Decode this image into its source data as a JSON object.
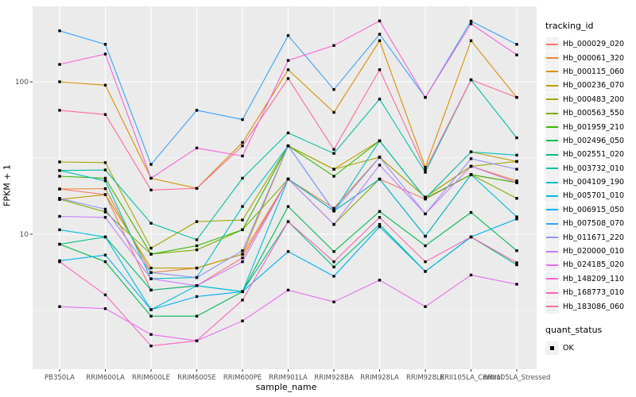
{
  "figure": {
    "bg": "#FFFFFF",
    "panel_bg": "#EBEBEB",
    "grid_color": "#FFFFFF",
    "tick_color": "#333333",
    "tick_label_color": "#4D4D4D",
    "point_color": "#000000"
  },
  "chart_data": {
    "type": "line",
    "title": "",
    "xlabel": "sample_name",
    "ylabel": "FPKM + 1",
    "y_scale": "log10",
    "ylim": [
      1.4,
      300
    ],
    "y_ticks": [
      10,
      100
    ],
    "y_tick_labels": [
      "10",
      "100"
    ],
    "y_minor_ticks": [
      3.162,
      31.62
    ],
    "grid": true,
    "marker": "black-square",
    "legend_position": "right",
    "legend_title": "tracking_id",
    "legend2_title": "quant_status",
    "legend2_items": [
      "OK"
    ],
    "categories": [
      "PB350LA",
      "RRIM600LA",
      "RRIM600LE",
      "RRIM600SE",
      "RRIM600PE",
      "RRIM901LA",
      "RRIM928BA",
      "RRIM928LA",
      "RRIM928LE",
      "RRII105LA_Control",
      "RRII105LA_Stressed"
    ],
    "series": [
      {
        "name": "Hb_000029_020",
        "color": "#F8766D",
        "values": [
          19.8,
          18.2,
          4.3,
          4.6,
          7.0,
          23,
          14.2,
          23,
          17,
          24.6,
          21.8
        ]
      },
      {
        "name": "Hb_000061_320",
        "color": "#EA8331",
        "values": [
          19.8,
          19.9,
          5.6,
          6.0,
          7.4,
          23,
          14.8,
          32,
          17.5,
          27.9,
          22.4
        ]
      },
      {
        "name": "Hb_000115_060",
        "color": "#D89000",
        "values": [
          100,
          95,
          23.3,
          20,
          40,
          120,
          63,
          186,
          27.5,
          186,
          79
        ]
      },
      {
        "name": "Hb_000236_070",
        "color": "#C09B00",
        "values": [
          16.9,
          18.2,
          6.0,
          6.0,
          7.4,
          38,
          26.7,
          41,
          17.2,
          34.7,
          30
        ]
      },
      {
        "name": "Hb_000483_200",
        "color": "#A3A500",
        "values": [
          29.8,
          29.5,
          8.1,
          12.1,
          12.4,
          38,
          26.7,
          32,
          17.5,
          27.9,
          30
        ]
      },
      {
        "name": "Hb_000563_550",
        "color": "#7CAE00",
        "values": [
          17.0,
          14.0,
          7.4,
          7.9,
          10.7,
          23,
          11.6,
          23,
          9.7,
          24.6,
          17.2
        ]
      },
      {
        "name": "Hb_001959_210",
        "color": "#39B600",
        "values": [
          24,
          23.3,
          7.4,
          8.4,
          10.7,
          38,
          24,
          41,
          17.2,
          24.6,
          21.8
        ]
      },
      {
        "name": "Hb_002496_050",
        "color": "#00BB4E",
        "values": [
          8.6,
          6.6,
          2.9,
          2.9,
          4.2,
          15.2,
          7.7,
          14.1,
          8.4,
          13.9,
          7.8
        ]
      },
      {
        "name": "Hb_002551_020",
        "color": "#00BF7D",
        "values": [
          8.6,
          9.6,
          4.3,
          4.6,
          4.2,
          12.1,
          6.1,
          11.6,
          5.7,
          9.6,
          6.3
        ]
      },
      {
        "name": "Hb_003732_010",
        "color": "#00C1A3",
        "values": [
          26.2,
          26.4,
          11.8,
          9.2,
          23.3,
          46.2,
          33.9,
          77,
          25.5,
          103,
          42.9
        ]
      },
      {
        "name": "Hb_004109_190",
        "color": "#00BFC4",
        "values": [
          26.2,
          22.4,
          5.1,
          5.2,
          15.2,
          38,
          14.2,
          41,
          17.2,
          34.7,
          33
        ]
      },
      {
        "name": "Hb_005701_010",
        "color": "#00BAE0",
        "values": [
          10.7,
          9.6,
          3.2,
          4.6,
          4.2,
          23,
          14.2,
          23,
          9.7,
          24.6,
          13.0
        ]
      },
      {
        "name": "Hb_006915_050",
        "color": "#00B0F6",
        "values": [
          6.7,
          7.3,
          3.2,
          3.9,
          4.2,
          7.7,
          5.3,
          11.2,
          5.7,
          9.6,
          12.6
        ]
      },
      {
        "name": "Hb_007508_070",
        "color": "#35A2FF",
        "values": [
          216,
          176,
          28.7,
          65,
          56.5,
          201,
          89,
          205,
          79,
          250,
          176
        ]
      },
      {
        "name": "Hb_011671_220",
        "color": "#9590FF",
        "values": [
          17.2,
          14.6,
          5.6,
          5.2,
          7.8,
          38,
          14.2,
          32,
          13.6,
          31.3,
          26.7
        ]
      },
      {
        "name": "Hb_020000_010",
        "color": "#C77CFF",
        "values": [
          13.1,
          12.9,
          5.1,
          4.6,
          6.6,
          23,
          11.6,
          28.4,
          13.6,
          27.9,
          21.8
        ]
      },
      {
        "name": "Hb_024185_020",
        "color": "#E76BF3",
        "values": [
          3.35,
          3.25,
          2.2,
          2.0,
          2.7,
          4.3,
          3.6,
          5.0,
          3.35,
          5.4,
          4.7
        ]
      },
      {
        "name": "Hb_148209_110",
        "color": "#FA62DB",
        "values": [
          130,
          152,
          23.3,
          36.8,
          32.6,
          138,
          173,
          251,
          79,
          240,
          150
        ]
      },
      {
        "name": "Hb_168773_010",
        "color": "#FF62BC",
        "values": [
          6.6,
          4.0,
          1.85,
          2.0,
          3.7,
          12.1,
          6.6,
          12.9,
          6.6,
          9.6,
          6.5
        ]
      },
      {
        "name": "Hb_183086_060",
        "color": "#FF6A98",
        "values": [
          65,
          61,
          19.5,
          20,
          38,
          105,
          36,
          120,
          26.5,
          103,
          79
        ]
      }
    ]
  }
}
